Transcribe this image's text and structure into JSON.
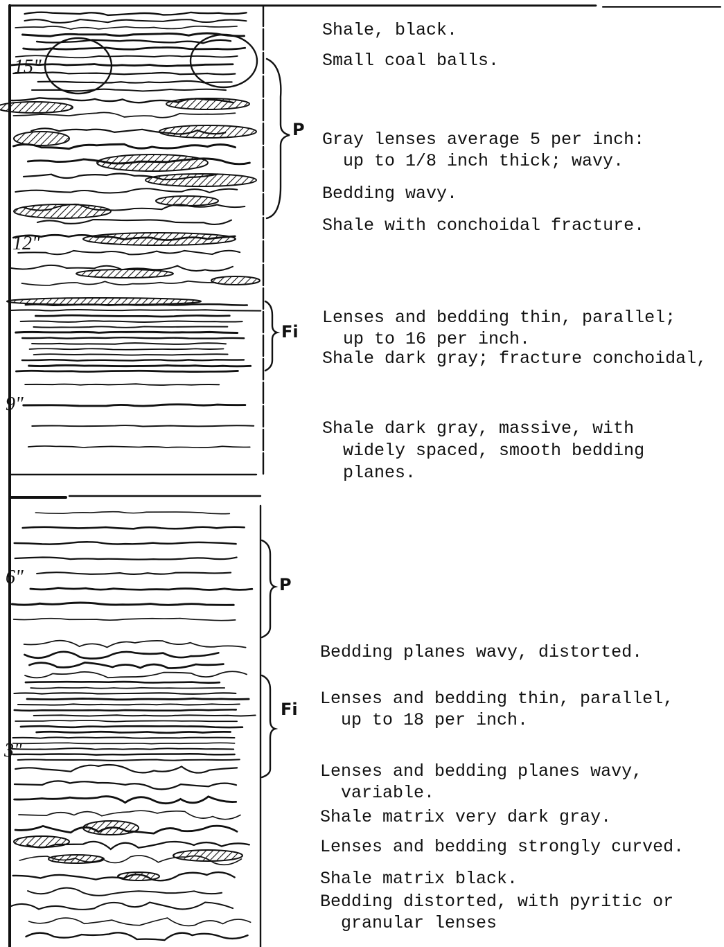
{
  "column": {
    "depth_marks": [
      "15\"",
      "12\"",
      "9\"",
      "6\"",
      "3\""
    ],
    "zones": [
      "P",
      "Fi",
      "P",
      "Fi"
    ]
  },
  "notes": [
    {
      "lines": [
        "Shale, black."
      ]
    },
    {
      "lines": [
        "Small coal balls."
      ]
    },
    {
      "lines": [
        "Gray lenses average 5 per inch:",
        "up to 1/8 inch thick; wavy."
      ]
    },
    {
      "lines": [
        "Bedding wavy."
      ]
    },
    {
      "lines": [
        "Shale with conchoidal fracture."
      ]
    },
    {
      "lines": [
        "Lenses and bedding thin, parallel;",
        "up to 16 per inch."
      ]
    },
    {
      "lines": [
        "Shale dark gray; fracture conchoidal,"
      ]
    },
    {
      "lines": [
        "Shale dark gray, massive, with",
        "widely spaced, smooth bedding",
        "planes."
      ]
    },
    {
      "lines": [
        "Bedding planes wavy, distorted."
      ]
    },
    {
      "lines": [
        "Lenses and bedding thin, parallel,",
        "up to 18 per inch."
      ]
    },
    {
      "lines": [
        "Lenses and bedding planes wavy,",
        "variable."
      ]
    },
    {
      "lines": [
        "Shale matrix very dark gray."
      ]
    },
    {
      "lines": [
        "Lenses and bedding strongly curved."
      ]
    },
    {
      "lines": [
        "Shale matrix black."
      ]
    },
    {
      "lines": [
        "Bedding distorted, with pyritic or",
        "granular lenses"
      ]
    }
  ]
}
